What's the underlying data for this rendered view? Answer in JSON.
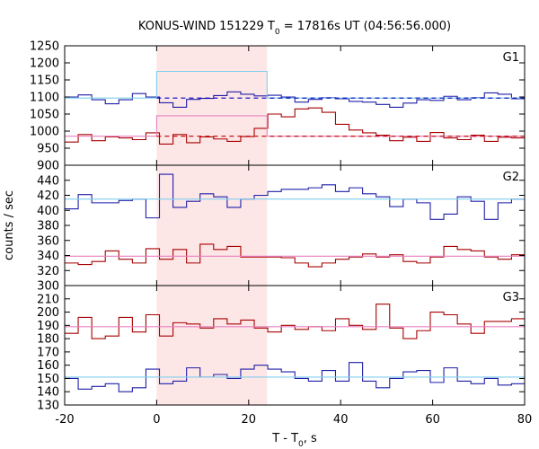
{
  "chart_data": {
    "type": "line",
    "title_parts": [
      "KONUS-WIND 151229 T",
      "0",
      " = 17816s UT (04:56:56.000)"
    ],
    "xlabel_parts": [
      "T - T",
      "0",
      ", s"
    ],
    "ylabel": "counts / sec",
    "xlim": [
      -20,
      80
    ],
    "xticks": [
      -20,
      0,
      20,
      40,
      60,
      80
    ],
    "highlight_interval": [
      0,
      24
    ],
    "colors": {
      "blue": "#1f1fa8",
      "red": "#a80000",
      "light_blue": "#7fcfef",
      "pink": "#e880c0",
      "dash_blue": "#0000c0",
      "dash_red": "#c00000",
      "highlight": "#fde6e6"
    },
    "panels": [
      {
        "label": "G1",
        "ylim": [
          900,
          1250
        ],
        "yticks": [
          900,
          950,
          1000,
          1050,
          1100,
          1150,
          1200,
          1250
        ],
        "series": [
          {
            "style": "step",
            "color_key": "blue",
            "x0": -20,
            "dx": 2.944,
            "values": [
              1100,
              1106,
              1092,
              1080,
              1092,
              1110,
              1100,
              1083,
              1070,
              1093,
              1096,
              1104,
              1115,
              1108,
              1103,
              1105,
              1100,
              1085,
              1093,
              1098,
              1095,
              1087,
              1085,
              1078,
              1070,
              1082,
              1092,
              1090,
              1102,
              1092,
              1098,
              1112,
              1108,
              1095,
              1092,
              1060,
              1090,
              1095,
              1095,
              1075,
              1050,
              1088,
              1100,
              1070,
              1060,
              1098,
              1112,
              1080,
              1065,
              1090,
              1068,
              1112,
              1095
            ]
          },
          {
            "style": "step",
            "color_key": "light_blue",
            "points": [
              [
                -20,
                1097
              ],
              [
                0,
                1097
              ],
              [
                0,
                1175
              ],
              [
                24,
                1175
              ],
              [
                24,
                1097
              ],
              [
                80,
                1097
              ]
            ]
          },
          {
            "style": "dashed",
            "color_key": "dash_blue",
            "points": [
              [
                0,
                1097
              ],
              [
                80,
                1097
              ]
            ]
          },
          {
            "style": "step",
            "color_key": "red",
            "x0": -20,
            "dx": 2.944,
            "values": [
              968,
              990,
              972,
              983,
              980,
              975,
              995,
              962,
              990,
              966,
              983,
              977,
              970,
              984,
              1008,
              1050,
              1042,
              1065,
              1068,
              1055,
              1020,
              1003,
              995,
              988,
              972,
              982,
              970,
              996,
              980,
              975,
              988,
              970,
              982,
              980,
              993,
              981,
              978,
              972,
              980,
              990,
              978,
              983,
              975,
              985,
              995,
              975,
              1000,
              985,
              985,
              985,
              972,
              1000,
              992,
              985
            ]
          },
          {
            "style": "step",
            "color_key": "pink",
            "points": [
              [
                -20,
                985
              ],
              [
                0,
                985
              ],
              [
                0,
                1045
              ],
              [
                24,
                1045
              ],
              [
                24,
                985
              ],
              [
                80,
                985
              ]
            ]
          },
          {
            "style": "dashed",
            "color_key": "dash_red",
            "points": [
              [
                0,
                985
              ],
              [
                80,
                985
              ]
            ]
          }
        ]
      },
      {
        "label": "G2",
        "ylim": [
          300,
          460
        ],
        "yticks": [
          300,
          320,
          340,
          360,
          380,
          400,
          420,
          440
        ],
        "series": [
          {
            "style": "step",
            "color_key": "blue",
            "x0": -20,
            "dx": 2.944,
            "values": [
              402,
              421,
              410,
              410,
              413,
              415,
              390,
              448,
              404,
              412,
              422,
              418,
              404,
              415,
              420,
              425,
              428,
              428,
              430,
              434,
              425,
              430,
              422,
              418,
              405,
              415,
              410,
              388,
              395,
              418,
              412,
              388,
              410,
              415,
              400,
              417,
              413,
              406,
              425,
              415,
              402,
              420,
              395,
              405,
              418,
              412,
              408,
              405,
              418,
              415,
              410,
              425,
              435,
              410,
              420
            ]
          },
          {
            "style": "line",
            "color_key": "light_blue",
            "points": [
              [
                -20,
                415
              ],
              [
                80,
                415
              ]
            ]
          },
          {
            "style": "step",
            "color_key": "red",
            "x0": -20,
            "dx": 2.944,
            "values": [
              330,
              328,
              332,
              346,
              335,
              330,
              349,
              335,
              348,
              330,
              355,
              348,
              352,
              338,
              338,
              338,
              337,
              330,
              325,
              330,
              335,
              338,
              342,
              338,
              341,
              332,
              330,
              338,
              352,
              348,
              346,
              338,
              335,
              341,
              342,
              340,
              335,
              332,
              338,
              342,
              335,
              330,
              332,
              345,
              341,
              338,
              332,
              338,
              342,
              335,
              330,
              338,
              335
            ]
          },
          {
            "style": "line",
            "color_key": "pink",
            "points": [
              [
                -20,
                339
              ],
              [
                80,
                339
              ]
            ]
          }
        ]
      },
      {
        "label": "G3",
        "ylim": [
          130,
          220
        ],
        "yticks": [
          130,
          140,
          150,
          160,
          170,
          180,
          190,
          200,
          210
        ],
        "series": [
          {
            "style": "step",
            "color_key": "red",
            "x0": -20,
            "dx": 2.944,
            "values": [
              184,
              196,
              180,
              182,
              196,
              185,
              198,
              182,
              192,
              191,
              188,
              195,
              191,
              194,
              188,
              185,
              190,
              187,
              189,
              186,
              195,
              190,
              187,
              206,
              188,
              180,
              186,
              200,
              198,
              191,
              184,
              193,
              193,
              195,
              190,
              181,
              196,
              183,
              184,
              186,
              188,
              187,
              185,
              186,
              180,
              196,
              190,
              192,
              191,
              190
            ]
          },
          {
            "style": "line",
            "color_key": "pink",
            "points": [
              [
                -20,
                189
              ],
              [
                80,
                189
              ]
            ]
          },
          {
            "style": "step",
            "color_key": "blue",
            "x0": -20,
            "dx": 2.944,
            "values": [
              150,
              142,
              144,
              146,
              140,
              143,
              157,
              146,
              148,
              158,
              151,
              153,
              150,
              157,
              160,
              157,
              155,
              150,
              148,
              156,
              148,
              162,
              148,
              143,
              150,
              155,
              156,
              147,
              158,
              148,
              146,
              150,
              145,
              146,
              155,
              157,
              149,
              141,
              155,
              148,
              146,
              143,
              150,
              150,
              152,
              154,
              150,
              155,
              160,
              162,
              153
            ]
          },
          {
            "style": "line",
            "color_key": "light_blue",
            "points": [
              [
                -20,
                151
              ],
              [
                80,
                151
              ]
            ]
          }
        ]
      }
    ]
  }
}
